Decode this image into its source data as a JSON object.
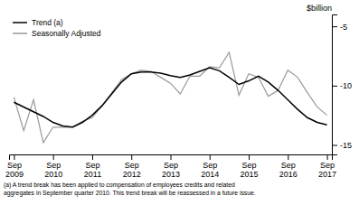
{
  "chart_data": {
    "type": "line",
    "ylabel": "$billion",
    "annotations": [
      "(a) A trend break has been applied to compensation of employees credits and related\naggregates in September quarter 2010. This trend break will be reassessed in a future issue."
    ],
    "categories": [
      "Sep\n2009",
      null,
      null,
      null,
      "Sep\n2010",
      null,
      null,
      null,
      "Sep\n2011",
      null,
      null,
      null,
      "Sep\n2012",
      null,
      null,
      null,
      "Sep\n2013",
      null,
      null,
      null,
      "Sep\n2014",
      null,
      null,
      null,
      "Sep\n2015",
      null,
      null,
      null,
      "Sep\n2016",
      null,
      null,
      null,
      "Sep\n2017"
    ],
    "series": [
      {
        "name": "Seasonally Adjusted",
        "color": "#999999",
        "values": [
          -11.0,
          -13.8,
          -11.2,
          -14.8,
          -13.5,
          -13.5,
          -13.5,
          -13.0,
          -12.7,
          -11.7,
          -10.6,
          -9.5,
          -9.0,
          -8.7,
          -8.8,
          -9.3,
          -9.8,
          -10.7,
          -9.2,
          -9.2,
          -8.4,
          -8.5,
          -7.2,
          -10.8,
          -9.0,
          -9.3,
          -10.9,
          -10.4,
          -8.7,
          -9.3,
          -10.6,
          -11.8,
          -12.5
        ]
      },
      {
        "name": "Trend (a)",
        "color": "#000000",
        "values": [
          -11.4,
          -11.8,
          -12.2,
          -12.6,
          -13.1,
          -13.4,
          -13.5,
          -13.1,
          -12.5,
          -11.7,
          -10.7,
          -9.7,
          -9.0,
          -8.85,
          -8.85,
          -8.95,
          -9.15,
          -9.3,
          -9.1,
          -8.8,
          -8.5,
          -8.75,
          -9.3,
          -9.9,
          -9.6,
          -9.2,
          -9.7,
          -10.4,
          -11.2,
          -12.0,
          -12.7,
          -13.1,
          -13.3
        ]
      }
    ],
    "ylim": [
      -15.8,
      -4.0
    ],
    "yticks": [
      -5,
      -10,
      -15
    ],
    "grid": false,
    "legend": "top-left"
  }
}
